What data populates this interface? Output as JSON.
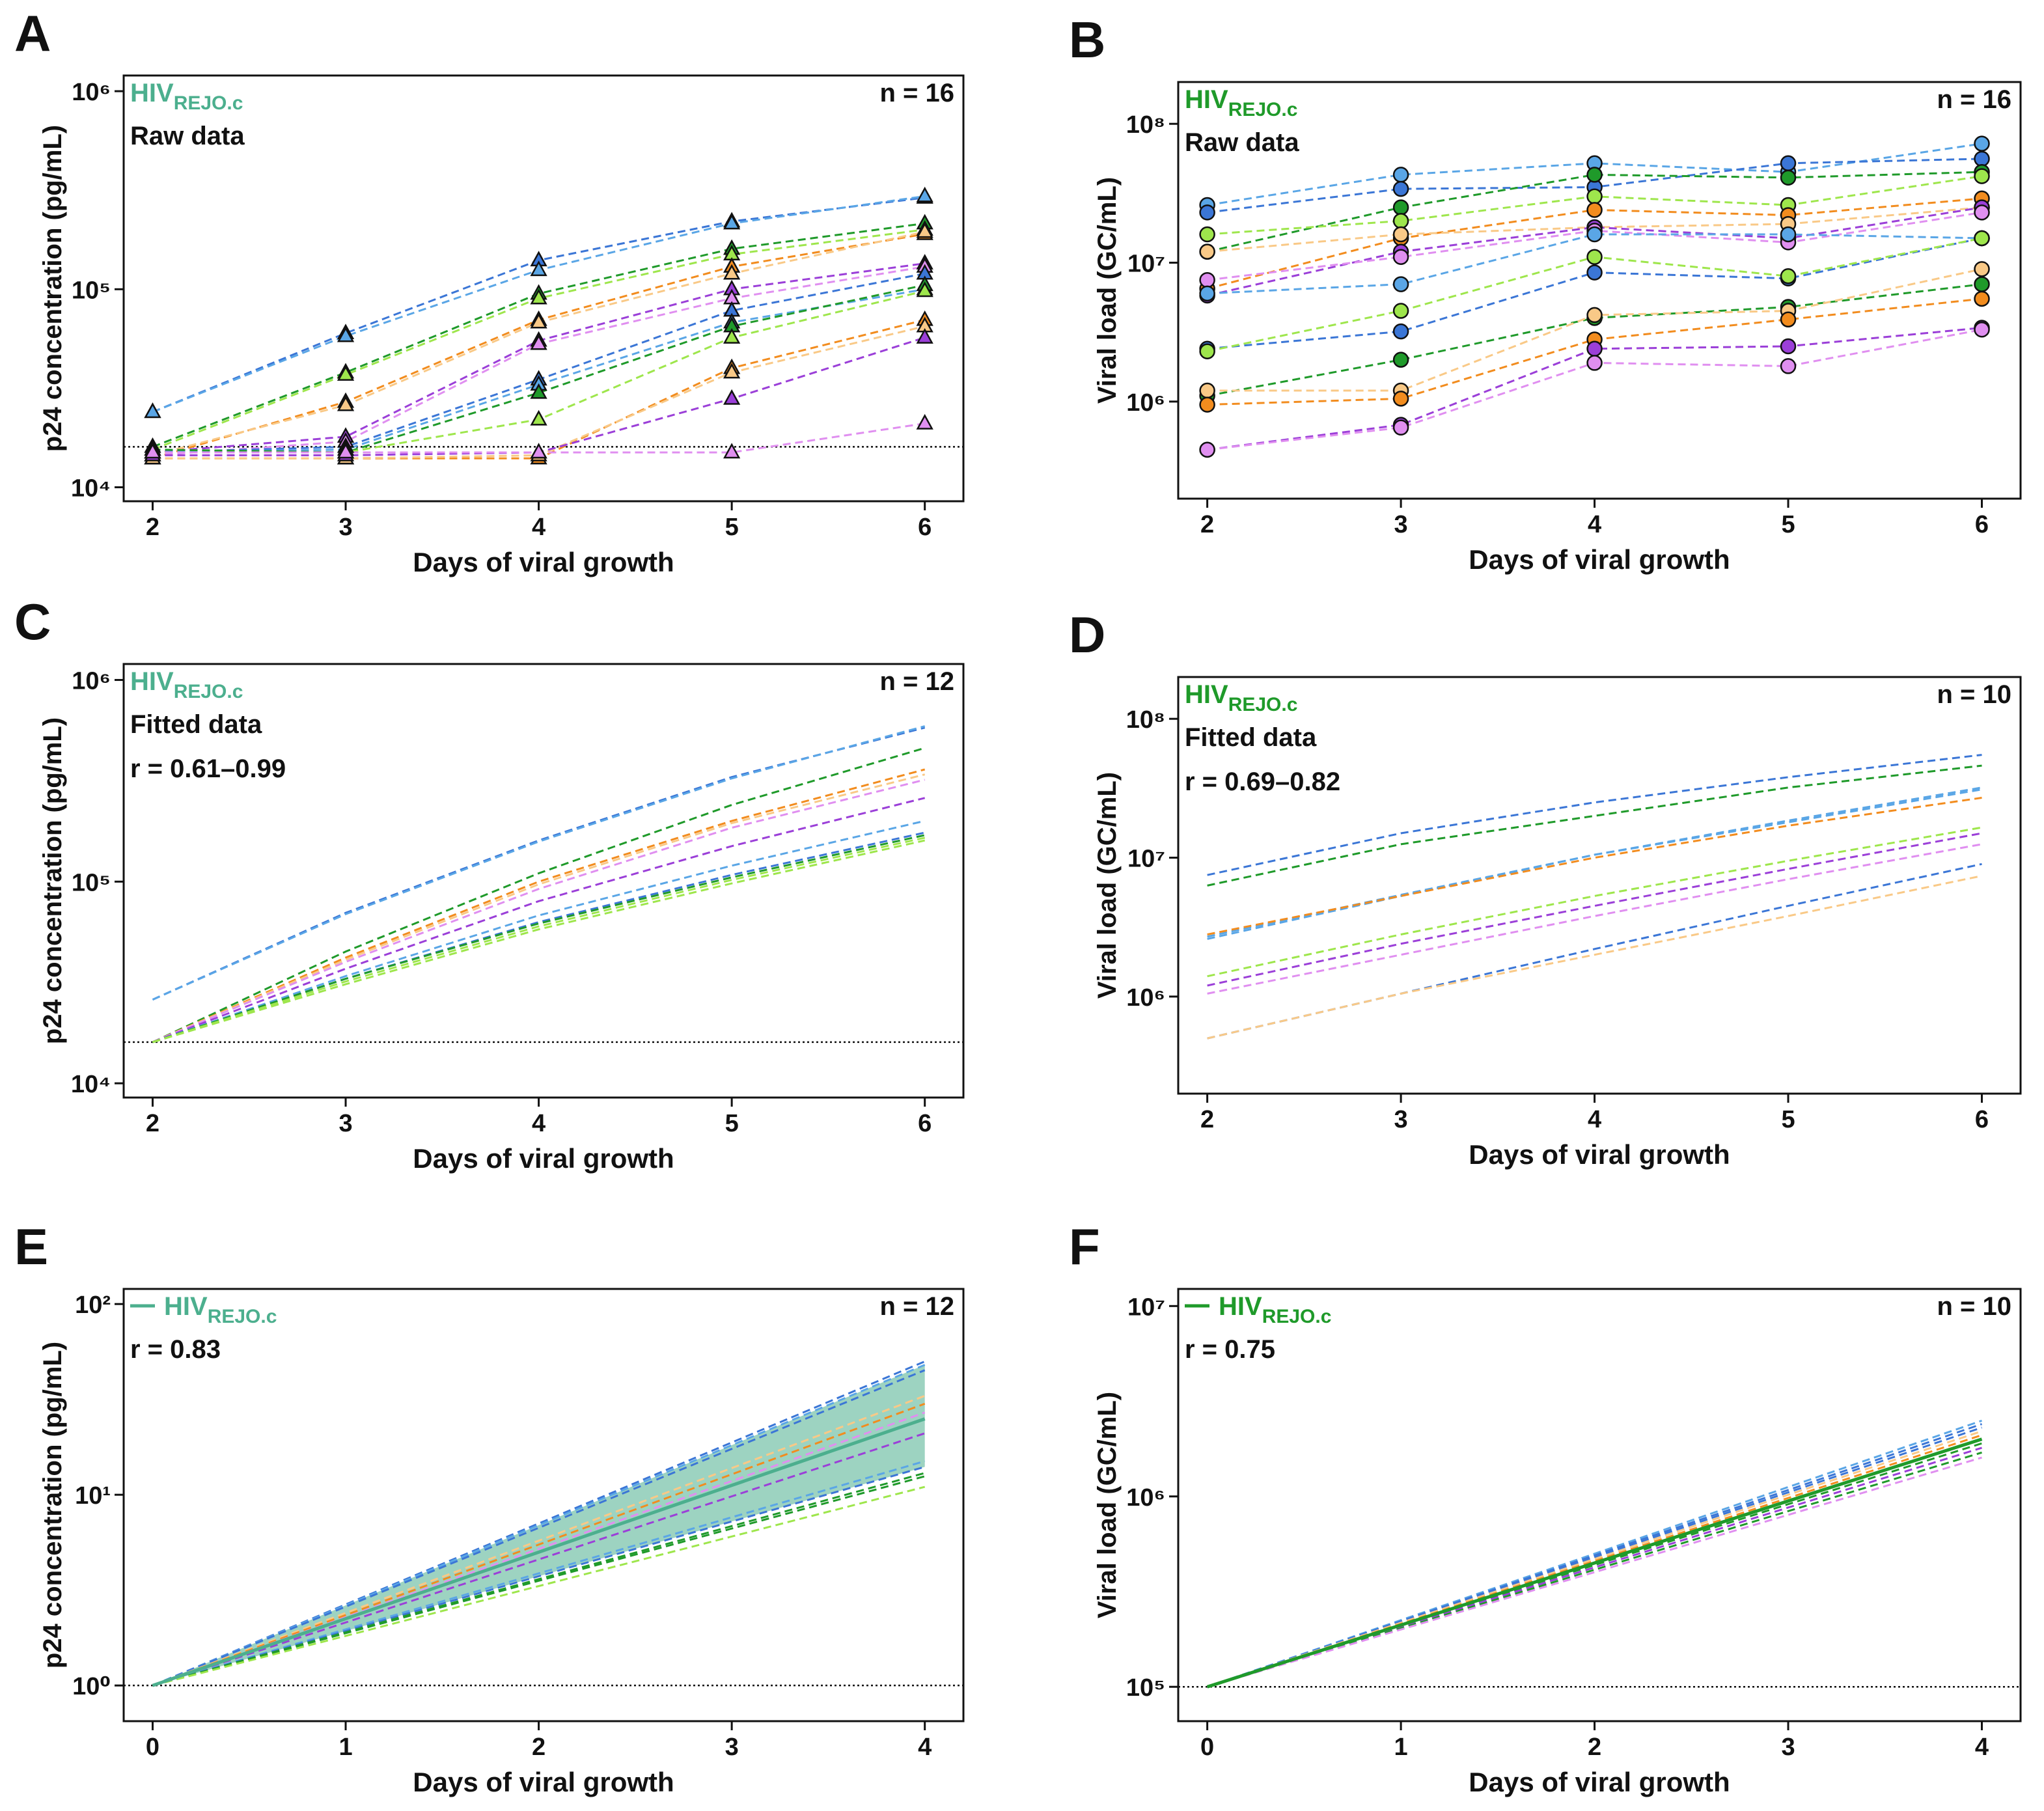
{
  "chart_data": [
    {
      "type": "line",
      "panel": "A",
      "label_main": "HIV",
      "label_sub": "REJO.c",
      "label_color": "#4caf8e",
      "annotations": [
        "Raw data"
      ],
      "n": "n = 16",
      "marker": "triangle",
      "log_y": true,
      "x_label": "Days of viral growth",
      "y_label": "p24 concentration (pg/mL)",
      "x": [
        2,
        3,
        4,
        5,
        6
      ],
      "xlim": [
        1.85,
        6.2
      ],
      "xticks": [
        2,
        3,
        4,
        5,
        6
      ],
      "ylim": [
        8500,
        1200000
      ],
      "yticks": [
        {
          "value": 10000,
          "label": "10⁴"
        },
        {
          "value": 100000,
          "label": "10⁵"
        },
        {
          "value": 1000000,
          "label": "10⁶"
        }
      ],
      "threshold": 16000,
      "series": [
        {
          "color": "#3b76d6",
          "values": [
            24000,
            60000,
            140000,
            220000,
            290000
          ]
        },
        {
          "color": "#5aa6e6",
          "values": [
            24000,
            58000,
            125000,
            215000,
            295000
          ]
        },
        {
          "color": "#1f9a2a",
          "values": [
            16000,
            38000,
            95000,
            160000,
            215000
          ]
        },
        {
          "color": "#9ee64c",
          "values": [
            15500,
            37000,
            90000,
            150000,
            200000
          ]
        },
        {
          "color": "#f28c1e",
          "values": [
            14000,
            27000,
            70000,
            130000,
            190000
          ]
        },
        {
          "color": "#f9c987",
          "values": [
            14500,
            26000,
            68000,
            120000,
            195000
          ]
        },
        {
          "color": "#9b3fd8",
          "values": [
            15000,
            18000,
            55000,
            100000,
            135000
          ]
        },
        {
          "color": "#e08ff0",
          "values": [
            14500,
            17000,
            53000,
            90000,
            130000
          ]
        },
        {
          "color": "#3b76d6",
          "values": [
            15000,
            16000,
            35000,
            78000,
            120000
          ]
        },
        {
          "color": "#5aa6e6",
          "values": [
            15000,
            15500,
            33000,
            68000,
            100000
          ]
        },
        {
          "color": "#1f9a2a",
          "values": [
            15500,
            15000,
            30000,
            65000,
            105000
          ]
        },
        {
          "color": "#9ee64c",
          "values": [
            15000,
            15000,
            22000,
            57000,
            98000
          ]
        },
        {
          "color": "#f28c1e",
          "values": [
            14000,
            14000,
            14000,
            40000,
            70000
          ]
        },
        {
          "color": "#f9c987",
          "values": [
            14000,
            14000,
            14500,
            38000,
            65000
          ]
        },
        {
          "color": "#9b3fd8",
          "values": [
            14500,
            14500,
            15000,
            28000,
            57000
          ]
        },
        {
          "color": "#e08ff0",
          "values": [
            15000,
            15000,
            15000,
            15000,
            21000
          ]
        }
      ]
    },
    {
      "type": "line",
      "panel": "B",
      "label_main": "HIV",
      "label_sub": "REJO.c",
      "label_color": "#1f9a2a",
      "annotations": [
        "Raw data"
      ],
      "n": "n = 16",
      "marker": "circle",
      "log_y": true,
      "x_label": "Days of viral growth",
      "y_label": "Viral load (GC/mL)",
      "x": [
        2,
        3,
        4,
        5,
        6
      ],
      "xlim": [
        1.85,
        6.2
      ],
      "xticks": [
        2,
        3,
        4,
        5,
        6
      ],
      "ylim": [
        200000,
        200000000
      ],
      "yticks": [
        {
          "value": 1000000,
          "label": "10⁶"
        },
        {
          "value": 10000000,
          "label": "10⁷"
        },
        {
          "value": 100000000,
          "label": "10⁸"
        }
      ],
      "series": [
        {
          "color": "#5aa6e6",
          "values": [
            26000000,
            43000000,
            52000000,
            45000000,
            72000000
          ]
        },
        {
          "color": "#3b76d6",
          "values": [
            23000000,
            34000000,
            35000000,
            52000000,
            56000000
          ]
        },
        {
          "color": "#1f9a2a",
          "values": [
            12000000,
            25000000,
            43000000,
            41000000,
            45000000
          ]
        },
        {
          "color": "#9ee64c",
          "values": [
            16000000,
            20000000,
            30000000,
            26000000,
            42000000
          ]
        },
        {
          "color": "#f28c1e",
          "values": [
            6500000,
            15000000,
            24000000,
            22000000,
            29000000
          ]
        },
        {
          "color": "#f9c987",
          "values": [
            12000000,
            16000000,
            18000000,
            19000000,
            25000000
          ]
        },
        {
          "color": "#9b3fd8",
          "values": [
            5800000,
            12000000,
            18000000,
            15000000,
            25000000
          ]
        },
        {
          "color": "#e08ff0",
          "values": [
            7500000,
            11000000,
            17000000,
            14000000,
            23000000
          ]
        },
        {
          "color": "#5aa6e6",
          "values": [
            6000000,
            7000000,
            16000000,
            16000000,
            15000000
          ]
        },
        {
          "color": "#3b76d6",
          "values": [
            2400000,
            3200000,
            8500000,
            7700000,
            15000000
          ]
        },
        {
          "color": "#9ee64c",
          "values": [
            2300000,
            4500000,
            11000000,
            8000000,
            15000000
          ]
        },
        {
          "color": "#1f9a2a",
          "values": [
            1100000,
            2000000,
            4000000,
            4800000,
            7000000
          ]
        },
        {
          "color": "#f9c987",
          "values": [
            1200000,
            1200000,
            4200000,
            4500000,
            9000000
          ]
        },
        {
          "color": "#f28c1e",
          "values": [
            950000,
            1050000,
            2800000,
            3900000,
            5500000
          ]
        },
        {
          "color": "#9b3fd8",
          "values": [
            450000,
            680000,
            2400000,
            2500000,
            3400000
          ]
        },
        {
          "color": "#e08ff0",
          "values": [
            450000,
            650000,
            1900000,
            1800000,
            3300000
          ]
        }
      ]
    },
    {
      "type": "line",
      "panel": "C",
      "label_main": "HIV",
      "label_sub": "REJO.c",
      "label_color": "#4caf8e",
      "annotations": [
        "Fitted data",
        "r = 0.61–0.99"
      ],
      "n": "n = 12",
      "log_y": true,
      "x_label": "Days of viral growth",
      "y_label": "p24 concentration (pg/mL)",
      "x": [
        2,
        3,
        4,
        5,
        6
      ],
      "xlim": [
        1.85,
        6.2
      ],
      "xticks": [
        2,
        3,
        4,
        5,
        6
      ],
      "ylim": [
        8500,
        1200000
      ],
      "yticks": [
        {
          "value": 10000,
          "label": "10⁴"
        },
        {
          "value": 100000,
          "label": "10⁵"
        },
        {
          "value": 1000000,
          "label": "10⁶"
        }
      ],
      "threshold": 16000,
      "series": [
        {
          "color": "#3b76d6",
          "values": [
            26000,
            70000,
            160000,
            330000,
            580000
          ]
        },
        {
          "color": "#5aa6e6",
          "values": [
            26000,
            69000,
            158000,
            325000,
            590000
          ]
        },
        {
          "color": "#1f9a2a",
          "values": [
            16000,
            45000,
            110000,
            240000,
            460000
          ]
        },
        {
          "color": "#f28c1e",
          "values": [
            16000,
            42000,
            100000,
            200000,
            360000
          ]
        },
        {
          "color": "#f9c987",
          "values": [
            16000,
            41000,
            97000,
            195000,
            340000
          ]
        },
        {
          "color": "#e08ff0",
          "values": [
            16000,
            40000,
            92000,
            185000,
            320000
          ]
        },
        {
          "color": "#9b3fd8",
          "values": [
            16000,
            37000,
            80000,
            150000,
            260000
          ]
        },
        {
          "color": "#5aa6e6",
          "values": [
            16000,
            34000,
            68000,
            120000,
            200000
          ]
        },
        {
          "color": "#3b76d6",
          "values": [
            16000,
            33000,
            63000,
            108000,
            175000
          ]
        },
        {
          "color": "#1f9a2a",
          "values": [
            16000,
            33000,
            62000,
            105000,
            170000
          ]
        },
        {
          "color": "#9ee64c",
          "values": [
            16000,
            32000,
            60000,
            102000,
            165000
          ]
        },
        {
          "color": "#9ee64c",
          "values": [
            16000,
            31000,
            58000,
            98000,
            160000
          ]
        }
      ]
    },
    {
      "type": "line",
      "panel": "D",
      "label_main": "HIV",
      "label_sub": "REJO.c",
      "label_color": "#1f9a2a",
      "annotations": [
        "Fitted data",
        "r = 0.69–0.82"
      ],
      "n": "n = 10",
      "log_y": true,
      "x_label": "Days of viral growth",
      "y_label": "Viral load (GC/mL)",
      "x": [
        2,
        3,
        4,
        5,
        6
      ],
      "xlim": [
        1.85,
        6.2
      ],
      "xticks": [
        2,
        3,
        4,
        5,
        6
      ],
      "ylim": [
        200000,
        200000000
      ],
      "yticks": [
        {
          "value": 1000000,
          "label": "10⁶"
        },
        {
          "value": 10000000,
          "label": "10⁷"
        },
        {
          "value": 100000000,
          "label": "10⁸"
        }
      ],
      "series": [
        {
          "color": "#3b76d6",
          "values": [
            7500000,
            15000000,
            25000000,
            38000000,
            55000000
          ]
        },
        {
          "color": "#1f9a2a",
          "values": [
            6300000,
            12500000,
            20000000,
            32000000,
            46000000
          ]
        },
        {
          "color": "#5aa6e6",
          "values": [
            2600000,
            5300000,
            10500000,
            18000000,
            31000000
          ]
        },
        {
          "color": "#5aa6e6",
          "values": [
            2700000,
            5400000,
            10500000,
            18500000,
            32000000
          ]
        },
        {
          "color": "#f28c1e",
          "values": [
            2800000,
            5300000,
            10000000,
            17000000,
            27000000
          ]
        },
        {
          "color": "#9ee64c",
          "values": [
            1400000,
            2800000,
            5300000,
            9500000,
            16500000
          ]
        },
        {
          "color": "#9b3fd8",
          "values": [
            1200000,
            2400000,
            4500000,
            8300000,
            15000000
          ]
        },
        {
          "color": "#e08ff0",
          "values": [
            1050000,
            2000000,
            3800000,
            7000000,
            12500000
          ]
        },
        {
          "color": "#3b76d6",
          "values": [
            500000,
            1050000,
            2200000,
            4500000,
            9000000
          ]
        },
        {
          "color": "#f9c987",
          "values": [
            500000,
            1050000,
            2000000,
            3800000,
            7400000
          ]
        }
      ]
    },
    {
      "type": "line",
      "panel": "E",
      "label_main": "HIV",
      "label_sub": "REJO.c",
      "label_color": "#4caf8e",
      "annotations": [
        "r = 0.83"
      ],
      "n": "n = 12",
      "log_y": true,
      "x_label": "Days of viral growth",
      "y_label": "p24 concentration (pg/mL)",
      "x": [
        0,
        1,
        2,
        3,
        4
      ],
      "xlim": [
        -0.15,
        4.2
      ],
      "xticks": [
        0,
        1,
        2,
        3,
        4
      ],
      "ylim": [
        0.65,
        120
      ],
      "yticks": [
        {
          "value": 1,
          "label": "10⁰"
        },
        {
          "value": 10,
          "label": "10¹"
        },
        {
          "value": 100,
          "label": "10²"
        }
      ],
      "threshold": 1,
      "band": {
        "color": "#4caf8e",
        "upper": [
          1,
          2.63,
          6.93,
          18.2,
          48
        ],
        "lower": [
          1,
          1.93,
          3.74,
          7.24,
          14
        ]
      },
      "mean": {
        "color": "#4caf8e",
        "values": [
          1,
          2.24,
          5,
          11.2,
          25
        ]
      },
      "series": [
        {
          "color": "#3b76d6",
          "values": [
            1,
            2.66,
            7.07,
            18.8,
            50
          ]
        },
        {
          "color": "#5aa6e6",
          "values": [
            1,
            2.63,
            6.93,
            18.2,
            48
          ]
        },
        {
          "color": "#3b76d6",
          "values": [
            1,
            2.59,
            6.71,
            17.4,
            45
          ]
        },
        {
          "color": "#f9c987",
          "values": [
            1,
            2.4,
            5.74,
            13.8,
            33
          ]
        },
        {
          "color": "#f28c1e",
          "values": [
            1,
            2.34,
            5.48,
            12.8,
            30
          ]
        },
        {
          "color": "#e08ff0",
          "values": [
            1,
            2.28,
            5.2,
            11.8,
            27
          ]
        },
        {
          "color": "#9b3fd8",
          "values": [
            1,
            2.14,
            4.58,
            9.81,
            21
          ]
        },
        {
          "color": "#5aa6e6",
          "values": [
            1,
            1.97,
            3.87,
            7.62,
            15
          ]
        },
        {
          "color": "#3b76d6",
          "values": [
            1,
            1.93,
            3.74,
            7.24,
            14
          ]
        },
        {
          "color": "#1f9a2a",
          "values": [
            1,
            1.9,
            3.61,
            6.85,
            13
          ]
        },
        {
          "color": "#1f9a2a",
          "values": [
            1,
            1.88,
            3.54,
            6.65,
            12.5
          ]
        },
        {
          "color": "#9ee64c",
          "values": [
            1,
            1.82,
            3.32,
            6.04,
            11
          ]
        }
      ]
    },
    {
      "type": "line",
      "panel": "F",
      "label_main": "HIV",
      "label_sub": "REJO.c",
      "label_color": "#1f9a2a",
      "annotations": [
        "r = 0.75"
      ],
      "n": "n = 10",
      "log_y": true,
      "x_label": "Days of viral growth",
      "y_label": "Viral load (GC/mL)",
      "x": [
        0,
        1,
        2,
        3,
        4
      ],
      "xlim": [
        -0.15,
        4.2
      ],
      "xticks": [
        0,
        1,
        2,
        3,
        4
      ],
      "ylim": [
        66000,
        12300000
      ],
      "yticks": [
        {
          "value": 100000,
          "label": "10⁵"
        },
        {
          "value": 1000000,
          "label": "10⁶"
        },
        {
          "value": 10000000,
          "label": "10⁷"
        }
      ],
      "threshold": 100000,
      "mean": {
        "color": "#1f9a2a",
        "values": [
          100000,
          211000,
          447000,
          946000,
          2000000
        ]
      },
      "series": [
        {
          "color": "#5aa6e6",
          "values": [
            100000,
            224000,
            500000,
            1120000,
            2500000
          ]
        },
        {
          "color": "#3b76d6",
          "values": [
            100000,
            221000,
            490000,
            1080000,
            2400000
          ]
        },
        {
          "color": "#3b76d6",
          "values": [
            100000,
            219000,
            480000,
            1050000,
            2300000
          ]
        },
        {
          "color": "#f9c987",
          "values": [
            100000,
            217000,
            469000,
            1020000,
            2200000
          ]
        },
        {
          "color": "#f28c1e",
          "values": [
            100000,
            214000,
            458000,
            981000,
            2100000
          ]
        },
        {
          "color": "#9ee64c",
          "values": [
            100000,
            211000,
            447000,
            946000,
            2000000
          ]
        },
        {
          "color": "#1f9a2a",
          "values": [
            100000,
            209000,
            436000,
            910000,
            1900000
          ]
        },
        {
          "color": "#9b3fd8",
          "values": [
            100000,
            206000,
            424000,
            874000,
            1800000
          ]
        },
        {
          "color": "#1f9a2a",
          "values": [
            100000,
            203000,
            412000,
            837000,
            1700000
          ]
        },
        {
          "color": "#e08ff0",
          "values": [
            100000,
            200000,
            400000,
            800000,
            1600000
          ]
        }
      ]
    }
  ]
}
